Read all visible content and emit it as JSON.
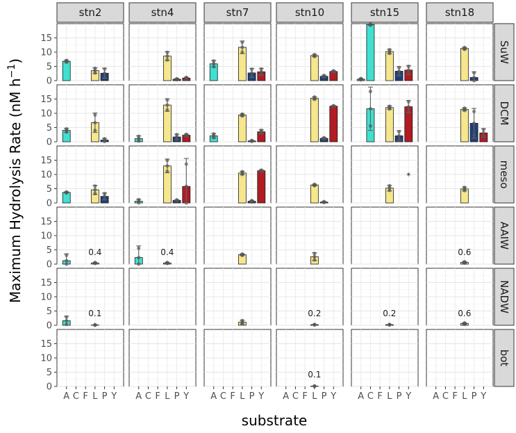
{
  "chart_data": {
    "type": "bar",
    "facet_type": "grid",
    "xlabel": "substrate",
    "ylabel": "Maximum Hydrolysis Rate (nM h",
    "ylabel_superscript": "−1",
    "ylabel_close": ")",
    "ylim": [
      0,
      20
    ],
    "y_ticks": [
      0,
      5,
      10,
      15
    ],
    "categories": [
      "A",
      "C",
      "F",
      "L",
      "P",
      "Y"
    ],
    "substrate_colors": {
      "A": "#40E0D0",
      "C": "#40E0D0",
      "F": "#40E0D0",
      "L": "#F6E68C",
      "P": "#1F3F7A",
      "Y": "#B01C22"
    },
    "columns": [
      "stn2",
      "stn4",
      "stn7",
      "stn10",
      "stn15",
      "stn18"
    ],
    "rows": [
      "SuW",
      "DCM",
      "meso",
      "AAIW",
      "NADW",
      "bot"
    ],
    "panels": [
      {
        "col": "stn2",
        "row": "SuW",
        "bars": [
          {
            "x": "A",
            "y": 6.8,
            "err": 0.4
          },
          {
            "x": "L",
            "y": 3.5,
            "err": 1.0
          },
          {
            "x": "P",
            "y": 2.6,
            "err": 1.8
          }
        ]
      },
      {
        "col": "stn4",
        "row": "SuW",
        "bars": [
          {
            "x": "L",
            "y": 8.6,
            "err": 1.6
          },
          {
            "x": "P",
            "y": 0.5,
            "err": 0.2
          },
          {
            "x": "Y",
            "y": 0.9,
            "err": 0.3
          }
        ]
      },
      {
        "col": "stn7",
        "row": "SuW",
        "bars": [
          {
            "x": "A",
            "y": 5.9,
            "err": 1.2
          },
          {
            "x": "L",
            "y": 11.7,
            "err": 2.2
          },
          {
            "x": "P",
            "y": 2.7,
            "err": 1.6
          },
          {
            "x": "Y",
            "y": 3.1,
            "err": 1.2
          }
        ]
      },
      {
        "col": "stn10",
        "row": "SuW",
        "bars": [
          {
            "x": "L",
            "y": 8.8,
            "err": 0.4
          },
          {
            "x": "P",
            "y": 1.5,
            "err": 0.4
          },
          {
            "x": "Y",
            "y": 3.2,
            "err": 0.3
          }
        ]
      },
      {
        "col": "stn15",
        "row": "SuW",
        "bars": [
          {
            "x": "A",
            "y": 0.5,
            "err": 0.3
          },
          {
            "x": "C",
            "y": 19.7,
            "err": 0.3
          },
          {
            "x": "L",
            "y": 10.2,
            "err": 0.8
          },
          {
            "x": "P",
            "y": 3.3,
            "err": 1.6
          },
          {
            "x": "Y",
            "y": 3.7,
            "err": 1.6
          }
        ]
      },
      {
        "col": "stn18",
        "row": "SuW",
        "bars": [
          {
            "x": "L",
            "y": 11.3,
            "err": 0.4
          },
          {
            "x": "P",
            "y": 1.1,
            "err": 2.0
          }
        ]
      },
      {
        "col": "stn2",
        "row": "DCM",
        "bars": [
          {
            "x": "A",
            "y": 4.0,
            "err": 0.7
          },
          {
            "x": "L",
            "y": 6.7,
            "err": 3.4
          },
          {
            "x": "P",
            "y": 0.6,
            "err": 0.6
          }
        ]
      },
      {
        "col": "stn4",
        "row": "DCM",
        "bars": [
          {
            "x": "A",
            "y": 1.1,
            "err": 1.0
          },
          {
            "x": "L",
            "y": 12.9,
            "err": 2.2
          },
          {
            "x": "P",
            "y": 1.7,
            "err": 1.0
          },
          {
            "x": "Y",
            "y": 2.3,
            "err": 0.4
          }
        ]
      },
      {
        "col": "stn7",
        "row": "DCM",
        "bars": [
          {
            "x": "A",
            "y": 2.1,
            "err": 0.8
          },
          {
            "x": "L",
            "y": 9.4,
            "err": 0.4
          },
          {
            "x": "P",
            "y": 0.3,
            "err": 0.2
          },
          {
            "x": "Y",
            "y": 3.5,
            "err": 0.7
          }
        ]
      },
      {
        "col": "stn10",
        "row": "DCM",
        "bars": [
          {
            "x": "L",
            "y": 15.3,
            "err": 0.5
          },
          {
            "x": "P",
            "y": 1.2,
            "err": 0.3
          },
          {
            "x": "Y",
            "y": 12.5,
            "err": 0.2
          }
        ]
      },
      {
        "col": "stn15",
        "row": "DCM",
        "bars": [
          {
            "x": "C",
            "y": 11.6,
            "err": 7.6
          },
          {
            "x": "L",
            "y": 12.0,
            "err": 0.6
          },
          {
            "x": "P",
            "y": 2.1,
            "err": 1.8
          },
          {
            "x": "Y",
            "y": 12.3,
            "err": 2.2
          }
        ]
      },
      {
        "col": "stn18",
        "row": "DCM",
        "bars": [
          {
            "x": "L",
            "y": 11.4,
            "err": 0.5
          },
          {
            "x": "P",
            "y": 6.5,
            "err": 5.2
          },
          {
            "x": "Y",
            "y": 3.1,
            "err": 1.5
          }
        ]
      },
      {
        "col": "stn2",
        "row": "meso",
        "bars": [
          {
            "x": "A",
            "y": 3.7,
            "err": 0.2
          },
          {
            "x": "L",
            "y": 4.6,
            "err": 1.6
          },
          {
            "x": "P",
            "y": 2.3,
            "err": 1.2
          }
        ]
      },
      {
        "col": "stn4",
        "row": "meso",
        "bars": [
          {
            "x": "A",
            "y": 0.6,
            "err": 0.7
          },
          {
            "x": "L",
            "y": 13.0,
            "err": 2.4
          },
          {
            "x": "P",
            "y": 0.9,
            "err": 0.2
          },
          {
            "x": "Y",
            "y": 5.8,
            "err": 9.8
          }
        ]
      },
      {
        "col": "stn7",
        "row": "meso",
        "bars": [
          {
            "x": "L",
            "y": 10.5,
            "err": 0.6
          },
          {
            "x": "P",
            "y": 0.6,
            "err": 0.3
          },
          {
            "x": "Y",
            "y": 11.3,
            "err": 0.3
          }
        ]
      },
      {
        "col": "stn10",
        "row": "meso",
        "bars": [
          {
            "x": "L",
            "y": 6.3,
            "err": 0.3
          },
          {
            "x": "P",
            "y": 0.3,
            "err": 0.2
          }
        ]
      },
      {
        "col": "stn15",
        "row": "meso",
        "bars": [
          {
            "x": "L",
            "y": 5.2,
            "err": 1.0
          }
        ]
      },
      {
        "col": "stn18",
        "row": "meso",
        "bars": [
          {
            "x": "L",
            "y": 4.9,
            "err": 0.7
          }
        ]
      },
      {
        "col": "stn2",
        "row": "AAIW",
        "bars": [
          {
            "x": "A",
            "y": 1.2,
            "err": 2.4
          },
          {
            "x": "L",
            "y": 0.4,
            "err": 0.2
          }
        ]
      },
      {
        "col": "stn4",
        "row": "AAIW",
        "bars": [
          {
            "x": "A",
            "y": 2.3,
            "err": 4.1
          },
          {
            "x": "L",
            "y": 0.4,
            "err": 0.2
          }
        ]
      },
      {
        "col": "stn7",
        "row": "AAIW",
        "bars": [
          {
            "x": "L",
            "y": 3.3,
            "err": 0.3
          }
        ]
      },
      {
        "col": "stn10",
        "row": "AAIW",
        "bars": [
          {
            "x": "L",
            "y": 2.6,
            "err": 1.4
          }
        ]
      },
      {
        "col": "stn15",
        "row": "AAIW",
        "bars": []
      },
      {
        "col": "stn18",
        "row": "AAIW",
        "bars": [
          {
            "x": "L",
            "y": 0.6,
            "err": 0.3
          }
        ]
      },
      {
        "col": "stn2",
        "row": "NADW",
        "bars": [
          {
            "x": "A",
            "y": 1.6,
            "err": 1.6
          },
          {
            "x": "L",
            "y": 0.1,
            "err": 0.1
          }
        ]
      },
      {
        "col": "stn4",
        "row": "NADW",
        "bars": []
      },
      {
        "col": "stn7",
        "row": "NADW",
        "bars": [
          {
            "x": "L",
            "y": 1.1,
            "err": 0.7
          }
        ]
      },
      {
        "col": "stn10",
        "row": "NADW",
        "bars": [
          {
            "x": "L",
            "y": 0.2,
            "err": 0.1
          }
        ]
      },
      {
        "col": "stn15",
        "row": "NADW",
        "bars": [
          {
            "x": "L",
            "y": 0.2,
            "err": 0.1
          }
        ]
      },
      {
        "col": "stn18",
        "row": "NADW",
        "bars": [
          {
            "x": "L",
            "y": 0.6,
            "err": 0.3
          }
        ]
      },
      {
        "col": "stn2",
        "row": "bot",
        "bars": []
      },
      {
        "col": "stn4",
        "row": "bot",
        "bars": []
      },
      {
        "col": "stn7",
        "row": "bot",
        "bars": []
      },
      {
        "col": "stn10",
        "row": "bot",
        "bars": [
          {
            "x": "L",
            "y": 0.1,
            "err": 0.05
          }
        ]
      },
      {
        "col": "stn15",
        "row": "bot",
        "bars": []
      },
      {
        "col": "stn18",
        "row": "bot",
        "bars": []
      }
    ],
    "annotations": [
      {
        "col": "stn2",
        "row": "AAIW",
        "text": "0.4",
        "x": "L",
        "y": 4.2
      },
      {
        "col": "stn4",
        "row": "AAIW",
        "text": "0.4",
        "x": "L",
        "y": 4.2
      },
      {
        "col": "stn18",
        "row": "AAIW",
        "text": "0.6",
        "x": "L",
        "y": 4.2
      },
      {
        "col": "stn2",
        "row": "NADW",
        "text": "0.1",
        "x": "L",
        "y": 4.2
      },
      {
        "col": "stn10",
        "row": "NADW",
        "text": "0.2",
        "x": "L",
        "y": 4.2
      },
      {
        "col": "stn15",
        "row": "NADW",
        "text": "0.2",
        "x": "L",
        "y": 4.2
      },
      {
        "col": "stn18",
        "row": "NADW",
        "text": "0.6",
        "x": "L",
        "y": 4.2
      },
      {
        "col": "stn10",
        "row": "bot",
        "text": "0.1",
        "x": "L",
        "y": 4.2
      },
      {
        "col": "stn15",
        "row": "meso",
        "text": "*",
        "x": "Y",
        "y": 10.5
      }
    ]
  }
}
